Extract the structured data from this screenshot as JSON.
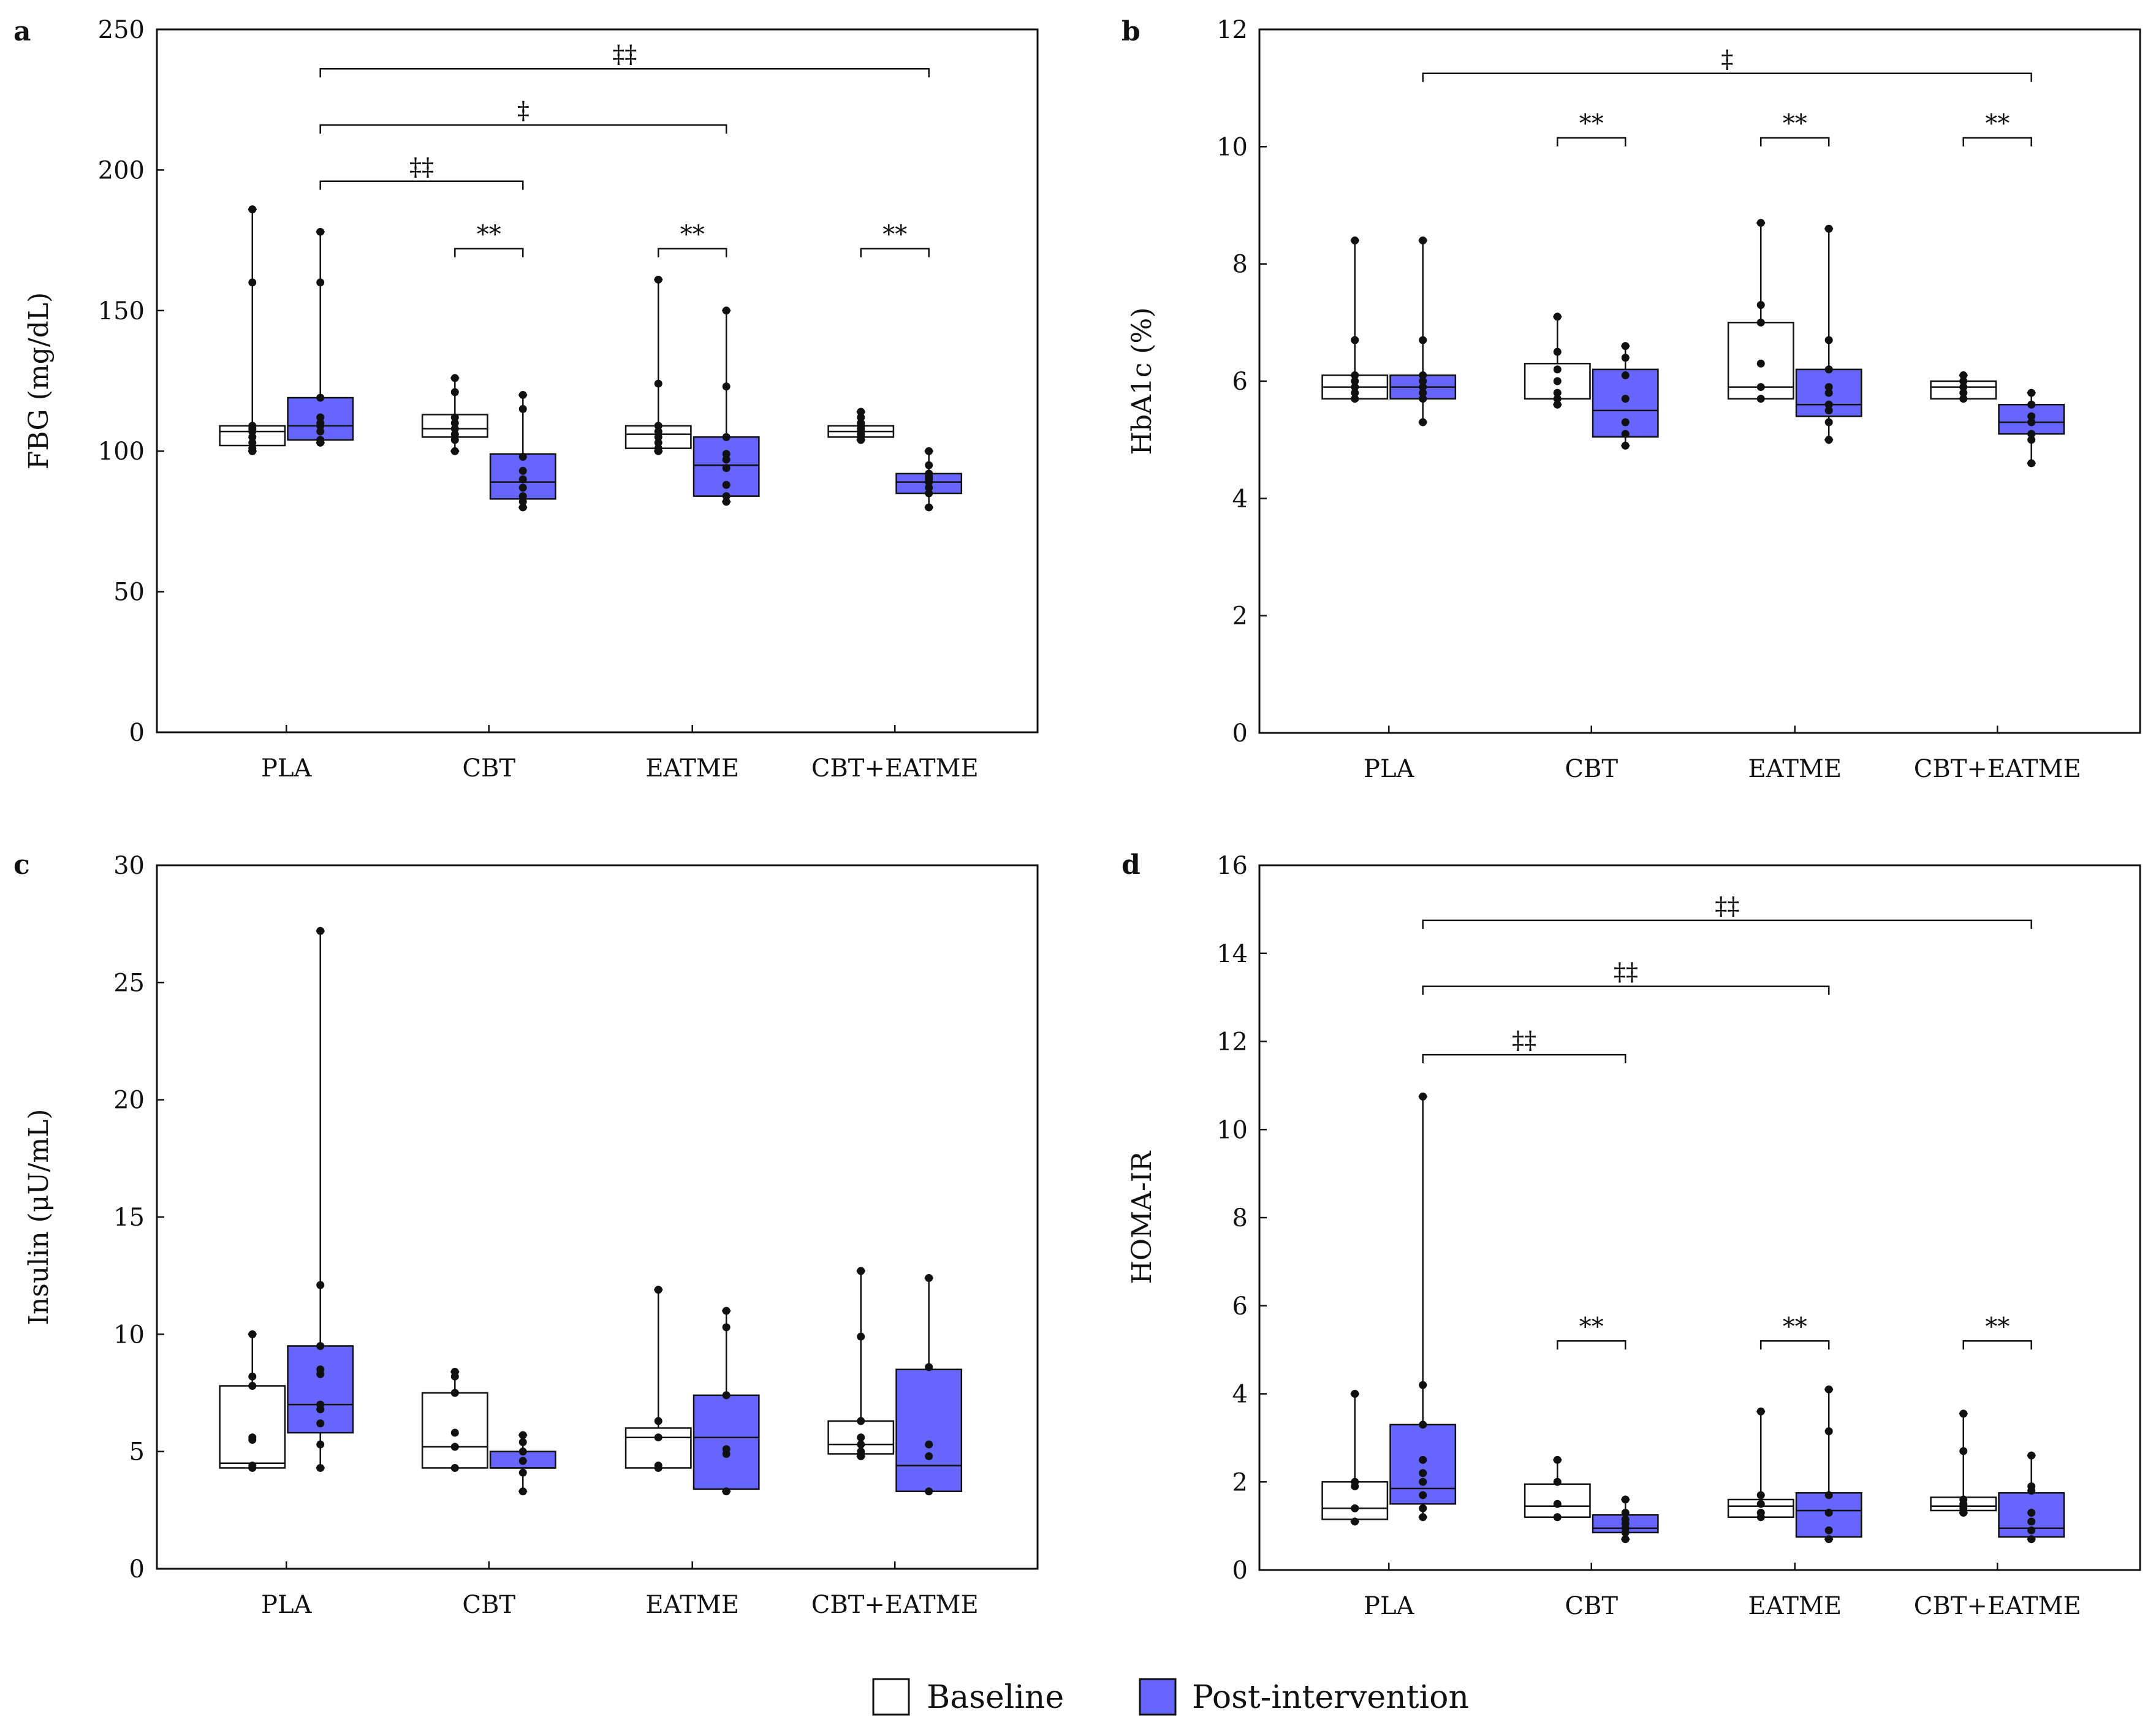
{
  "colors": {
    "baseline": "#ffffff",
    "post": "#6666ff",
    "stroke": "#111111"
  },
  "legend": {
    "baseline_label": "Baseline",
    "post_label": "Post-intervention"
  },
  "chart_data": [
    {
      "panel": "a",
      "type": "boxplot",
      "ylabel": "FBG (mg/dL)",
      "ylim": [
        0,
        250
      ],
      "yticks": [
        0,
        50,
        100,
        150,
        200,
        250
      ],
      "categories": [
        "PLA",
        "CBT",
        "EATME",
        "CBT+EATME"
      ],
      "series": [
        {
          "name": "Baseline",
          "boxes": [
            {
              "min": 100,
              "q1": 102,
              "median": 107,
              "q3": 109,
              "max": 186,
              "points": [
                100,
                101,
                103,
                105,
                107,
                108,
                109,
                160,
                186
              ]
            },
            {
              "min": 100,
              "q1": 105,
              "median": 108,
              "q3": 113,
              "max": 126,
              "points": [
                100,
                104,
                106,
                108,
                110,
                112,
                121,
                126
              ]
            },
            {
              "min": 100,
              "q1": 101,
              "median": 106,
              "q3": 109,
              "max": 161,
              "points": [
                100,
                101,
                103,
                105,
                107,
                109,
                124,
                161
              ]
            },
            {
              "min": 104,
              "q1": 105,
              "median": 107,
              "q3": 109,
              "max": 114,
              "points": [
                104,
                105,
                106,
                107,
                108,
                109,
                110,
                112,
                114
              ]
            }
          ]
        },
        {
          "name": "Post-intervention",
          "boxes": [
            {
              "min": 103,
              "q1": 104,
              "median": 109,
              "q3": 119,
              "max": 178,
              "points": [
                103,
                104,
                107,
                109,
                110,
                112,
                119,
                160,
                178
              ]
            },
            {
              "min": 80,
              "q1": 83,
              "median": 89,
              "q3": 99,
              "max": 120,
              "points": [
                80,
                82,
                84,
                87,
                90,
                93,
                98,
                115,
                120
              ]
            },
            {
              "min": 82,
              "q1": 84,
              "median": 95,
              "q3": 105,
              "max": 150,
              "points": [
                82,
                84,
                88,
                94,
                97,
                99,
                105,
                123,
                150
              ]
            },
            {
              "min": 80,
              "q1": 85,
              "median": 89,
              "q3": 92,
              "max": 100,
              "points": [
                80,
                85,
                87,
                89,
                90,
                91,
                92,
                95,
                100
              ]
            }
          ]
        }
      ],
      "significance": [
        {
          "from": "PLA:post",
          "to": "CBT+EATME:post",
          "label": "‡‡",
          "level": 236
        },
        {
          "from": "PLA:post",
          "to": "EATME:post",
          "label": "‡",
          "level": 216
        },
        {
          "from": "PLA:post",
          "to": "CBT:post",
          "label": "‡‡",
          "level": 196
        },
        {
          "from": "CBT:baseline",
          "to": "CBT:post",
          "label": "**",
          "level": 172
        },
        {
          "from": "EATME:baseline",
          "to": "EATME:post",
          "label": "**",
          "level": 172
        },
        {
          "from": "CBT+EATME:baseline",
          "to": "CBT+EATME:post",
          "label": "**",
          "level": 172
        }
      ]
    },
    {
      "panel": "b",
      "type": "boxplot",
      "ylabel": "HbA1c (%)",
      "ylim": [
        0,
        12
      ],
      "yticks": [
        0,
        2,
        4,
        6,
        8,
        10,
        12
      ],
      "categories": [
        "PLA",
        "CBT",
        "EATME",
        "CBT+EATME"
      ],
      "series": [
        {
          "name": "Baseline",
          "boxes": [
            {
              "min": 5.7,
              "q1": 5.7,
              "median": 5.9,
              "q3": 6.1,
              "max": 8.4,
              "points": [
                5.7,
                5.8,
                5.9,
                6.0,
                6.1,
                6.7,
                8.4
              ]
            },
            {
              "min": 5.6,
              "q1": 5.7,
              "median": 5.7,
              "q3": 6.3,
              "max": 7.1,
              "points": [
                5.6,
                5.7,
                5.8,
                6.0,
                6.2,
                6.5,
                7.1
              ]
            },
            {
              "min": 5.7,
              "q1": 5.7,
              "median": 5.9,
              "q3": 7.0,
              "max": 8.7,
              "points": [
                5.7,
                5.9,
                6.3,
                7.0,
                7.3,
                8.7
              ]
            },
            {
              "min": 5.7,
              "q1": 5.7,
              "median": 5.9,
              "q3": 6.0,
              "max": 6.1,
              "points": [
                5.7,
                5.8,
                5.9,
                6.0,
                6.1
              ]
            }
          ]
        },
        {
          "name": "Post-intervention",
          "boxes": [
            {
              "min": 5.3,
              "q1": 5.7,
              "median": 5.9,
              "q3": 6.1,
              "max": 8.4,
              "points": [
                5.3,
                5.7,
                5.8,
                5.9,
                6.0,
                6.1,
                6.7,
                8.4
              ]
            },
            {
              "min": 4.9,
              "q1": 5.05,
              "median": 5.5,
              "q3": 6.2,
              "max": 6.6,
              "points": [
                4.9,
                5.1,
                5.3,
                5.7,
                6.1,
                6.4,
                6.6
              ]
            },
            {
              "min": 5.0,
              "q1": 5.4,
              "median": 5.6,
              "q3": 6.2,
              "max": 8.6,
              "points": [
                5.0,
                5.3,
                5.5,
                5.6,
                5.8,
                5.9,
                6.2,
                6.7,
                8.6
              ]
            },
            {
              "min": 4.6,
              "q1": 5.1,
              "median": 5.3,
              "q3": 5.6,
              "max": 5.8,
              "points": [
                4.6,
                5.0,
                5.1,
                5.3,
                5.4,
                5.6,
                5.8
              ]
            }
          ]
        }
      ],
      "significance": [
        {
          "from": "PLA:post",
          "to": "CBT+EATME:post",
          "label": "‡",
          "level": 11.25
        },
        {
          "from": "CBT:baseline",
          "to": "CBT:post",
          "label": "**",
          "level": 10.15
        },
        {
          "from": "EATME:baseline",
          "to": "EATME:post",
          "label": "**",
          "level": 10.15
        },
        {
          "from": "CBT+EATME:baseline",
          "to": "CBT+EATME:post",
          "label": "**",
          "level": 10.15
        }
      ]
    },
    {
      "panel": "c",
      "type": "boxplot",
      "ylabel": "Insulin (μU/mL)",
      "ylim": [
        0,
        30
      ],
      "yticks": [
        0,
        5,
        10,
        15,
        20,
        25,
        30
      ],
      "categories": [
        "PLA",
        "CBT",
        "EATME",
        "CBT+EATME"
      ],
      "series": [
        {
          "name": "Baseline",
          "boxes": [
            {
              "min": 4.3,
              "q1": 4.3,
              "median": 4.5,
              "q3": 7.8,
              "max": 10.0,
              "points": [
                4.3,
                4.4,
                5.5,
                5.6,
                7.8,
                8.2,
                10.0
              ]
            },
            {
              "min": 4.3,
              "q1": 4.3,
              "median": 5.2,
              "q3": 7.5,
              "max": 8.4,
              "points": [
                4.3,
                5.2,
                5.8,
                7.5,
                8.2,
                8.4
              ]
            },
            {
              "min": 4.3,
              "q1": 4.3,
              "median": 5.6,
              "q3": 6.0,
              "max": 11.9,
              "points": [
                4.3,
                4.4,
                5.6,
                6.3,
                11.9
              ]
            },
            {
              "min": 4.8,
              "q1": 4.9,
              "median": 5.3,
              "q3": 6.3,
              "max": 12.7,
              "points": [
                4.8,
                5.0,
                5.3,
                5.6,
                6.3,
                9.9,
                12.7
              ]
            }
          ]
        },
        {
          "name": "Post-intervention",
          "boxes": [
            {
              "min": 4.3,
              "q1": 5.8,
              "median": 7.0,
              "q3": 9.5,
              "max": 27.2,
              "points": [
                4.3,
                5.3,
                6.2,
                6.8,
                7.0,
                8.3,
                8.5,
                9.5,
                12.1,
                27.2
              ]
            },
            {
              "min": 3.3,
              "q1": 4.3,
              "median": 4.3,
              "q3": 5.0,
              "max": 5.7,
              "points": [
                3.3,
                4.1,
                4.6,
                5.0,
                5.4,
                5.7
              ]
            },
            {
              "min": 3.3,
              "q1": 3.4,
              "median": 5.6,
              "q3": 7.4,
              "max": 11.0,
              "points": [
                3.3,
                4.9,
                5.1,
                7.4,
                10.3,
                11.0
              ]
            },
            {
              "min": 3.3,
              "q1": 3.3,
              "median": 4.4,
              "q3": 8.5,
              "max": 12.4,
              "points": [
                3.3,
                4.8,
                5.3,
                8.6,
                12.4
              ]
            }
          ]
        }
      ],
      "significance": []
    },
    {
      "panel": "d",
      "type": "boxplot",
      "ylabel": "HOMA-IR",
      "ylim": [
        0,
        16
      ],
      "yticks": [
        0,
        2,
        4,
        6,
        8,
        10,
        12,
        14,
        16
      ],
      "categories": [
        "PLA",
        "CBT",
        "EATME",
        "CBT+EATME"
      ],
      "series": [
        {
          "name": "Baseline",
          "boxes": [
            {
              "min": 1.1,
              "q1": 1.15,
              "median": 1.4,
              "q3": 2.0,
              "max": 4.0,
              "points": [
                1.1,
                1.4,
                1.9,
                2.0,
                4.0
              ]
            },
            {
              "min": 1.2,
              "q1": 1.2,
              "median": 1.45,
              "q3": 1.95,
              "max": 2.5,
              "points": [
                1.2,
                1.5,
                2.0,
                2.5
              ]
            },
            {
              "min": 1.2,
              "q1": 1.2,
              "median": 1.45,
              "q3": 1.6,
              "max": 3.6,
              "points": [
                1.2,
                1.3,
                1.5,
                1.7,
                3.6
              ]
            },
            {
              "min": 1.3,
              "q1": 1.35,
              "median": 1.45,
              "q3": 1.65,
              "max": 3.55,
              "points": [
                1.3,
                1.4,
                1.5,
                1.6,
                2.7,
                3.55
              ]
            }
          ]
        },
        {
          "name": "Post-intervention",
          "boxes": [
            {
              "min": 1.2,
              "q1": 1.5,
              "median": 1.85,
              "q3": 3.3,
              "max": 10.75,
              "points": [
                1.2,
                1.4,
                1.7,
                2.0,
                2.2,
                2.5,
                3.3,
                4.2,
                10.75
              ]
            },
            {
              "min": 0.7,
              "q1": 0.85,
              "median": 0.95,
              "q3": 1.25,
              "max": 1.6,
              "points": [
                0.7,
                0.85,
                0.95,
                1.05,
                1.15,
                1.3,
                1.6
              ]
            },
            {
              "min": 0.7,
              "q1": 0.75,
              "median": 1.35,
              "q3": 1.75,
              "max": 4.1,
              "points": [
                0.7,
                0.9,
                1.3,
                1.7,
                3.15,
                4.1
              ]
            },
            {
              "min": 0.7,
              "q1": 0.75,
              "median": 0.95,
              "q3": 1.75,
              "max": 2.6,
              "points": [
                0.7,
                0.9,
                1.1,
                1.3,
                1.8,
                1.9,
                2.6
              ]
            }
          ]
        }
      ],
      "significance": [
        {
          "from": "PLA:post",
          "to": "CBT+EATME:post",
          "label": "‡‡",
          "level": 14.75
        },
        {
          "from": "PLA:post",
          "to": "EATME:post",
          "label": "‡‡",
          "level": 13.25
        },
        {
          "from": "PLA:post",
          "to": "CBT:post",
          "label": "‡‡",
          "level": 11.7
        },
        {
          "from": "CBT:baseline",
          "to": "CBT:post",
          "label": "**",
          "level": 5.2
        },
        {
          "from": "EATME:baseline",
          "to": "EATME:post",
          "label": "**",
          "level": 5.2
        },
        {
          "from": "CBT+EATME:baseline",
          "to": "CBT+EATME:post",
          "label": "**",
          "level": 5.2
        }
      ]
    }
  ]
}
